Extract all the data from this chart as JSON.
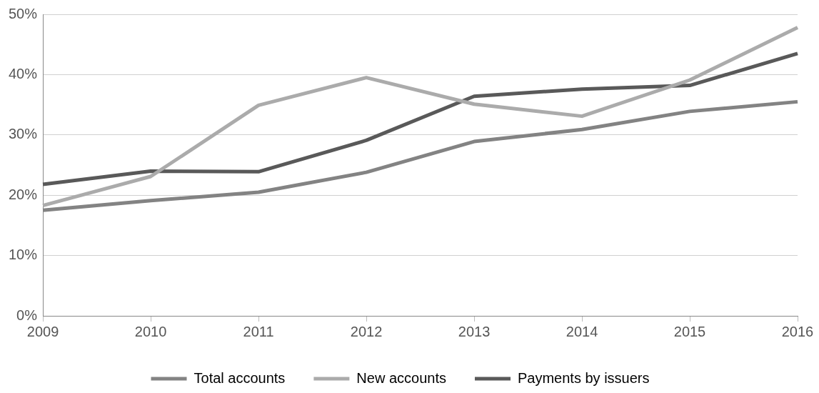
{
  "chart_data": {
    "type": "line",
    "categories": [
      "2009",
      "2010",
      "2011",
      "2012",
      "2013",
      "2014",
      "2015",
      "2016"
    ],
    "series": [
      {
        "name": "Total accounts",
        "color": "#838383",
        "values": [
          17.5,
          19.1,
          20.5,
          23.8,
          28.9,
          30.9,
          33.9,
          35.5
        ]
      },
      {
        "name": "New accounts",
        "color": "#ababab",
        "values": [
          18.3,
          23.1,
          34.9,
          39.5,
          35.1,
          33.1,
          39.1,
          47.8
        ]
      },
      {
        "name": "Payments by issuers",
        "color": "#595959",
        "values": [
          21.8,
          24.0,
          23.9,
          29.1,
          36.4,
          37.6,
          38.2,
          43.5
        ]
      }
    ],
    "ylim": [
      0,
      50
    ],
    "yticks": [
      {
        "value": 0,
        "label": "0%"
      },
      {
        "value": 10,
        "label": "10%"
      },
      {
        "value": 20,
        "label": "20%"
      },
      {
        "value": 30,
        "label": "30%"
      },
      {
        "value": 40,
        "label": "40%"
      },
      {
        "value": 50,
        "label": "50%"
      }
    ],
    "grid": "y",
    "legend": "bottom",
    "marker": "none",
    "line_style": "solid"
  }
}
